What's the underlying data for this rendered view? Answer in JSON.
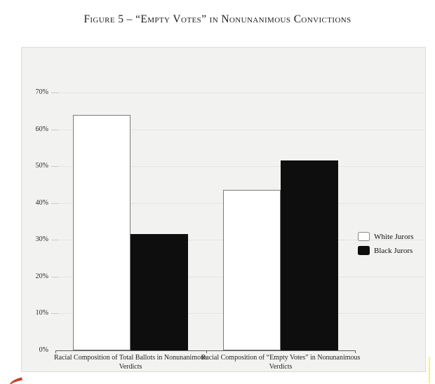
{
  "page": {
    "title": "Figure 5 – “Empty Votes” in Nonunanimous Convictions"
  },
  "chart_data": {
    "type": "bar",
    "title": "Figure 5 – “Empty Votes” in Nonunanimous Convictions",
    "categories": [
      "Racial Composition of Total Ballots in Nonunanimous Verdicts",
      "Racial Composition of “Empty Votes” in Nonunanimous Verdicts"
    ],
    "series": [
      {
        "name": "White Jurors",
        "values": [
          64,
          43.5
        ],
        "fill": "#ffffff",
        "border": "#7b7b7b"
      },
      {
        "name": "Black Jurors",
        "values": [
          31.5,
          51.5
        ],
        "fill": "#0e0e0e",
        "border": "#0e0e0e"
      }
    ],
    "xlabel": "",
    "ylabel": "",
    "ylim": [
      0,
      70
    ],
    "y_step": 10,
    "y_tick_labels": [
      "0%",
      "10%",
      "20%",
      "30%",
      "40%",
      "50%",
      "60%",
      "70%"
    ],
    "grid": true,
    "legend_position": "right",
    "plot_background": "#f2f2f0"
  },
  "legend": {
    "items": [
      {
        "label": "White Jurors",
        "swatch": "#ffffff"
      },
      {
        "label": "Black Jurors",
        "swatch": "#0e0e0e"
      }
    ]
  },
  "annotations": {
    "red_pen_mark_color": "#c6402c",
    "yellow_highlight_color": "#eff193"
  },
  "colors": {
    "page_background": "#ffffff",
    "chart_background": "#f2f2f0",
    "gridline": "#e4e4e2",
    "axis": "#5a5a5c",
    "text": "#1b1b1b"
  }
}
